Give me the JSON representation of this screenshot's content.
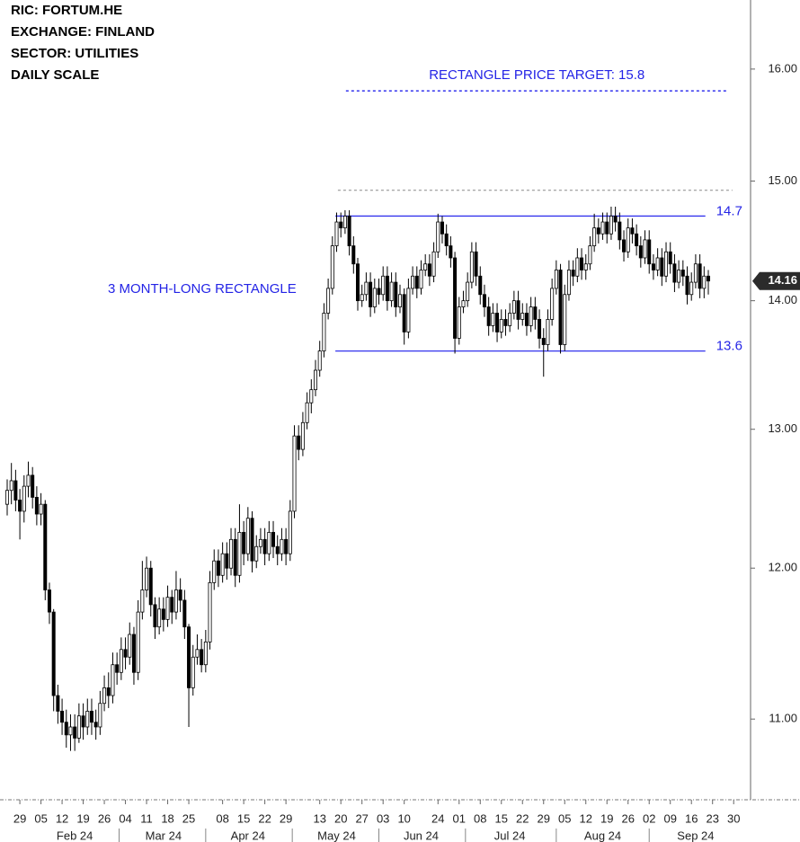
{
  "chart_data": {
    "type": "candlestick",
    "header": [
      "RIC:  FORTUM.HE",
      "EXCHANGE:  FINLAND",
      "SECTOR:  UTILITIES",
      "DAILY SCALE"
    ],
    "log_scale": true,
    "up_color": "#ffffff",
    "down_color": "#000000",
    "x": [
      0,
      1,
      2,
      3,
      4,
      5,
      6,
      7,
      8,
      9,
      10,
      11,
      12,
      13,
      14,
      15,
      16,
      17,
      18,
      19,
      20,
      21,
      22,
      23,
      24,
      25,
      26,
      27,
      28,
      29,
      30,
      31,
      32,
      33,
      34,
      35,
      36,
      37,
      38,
      39,
      40,
      41,
      42,
      43,
      44,
      45,
      46,
      47,
      48,
      49,
      50,
      51,
      52,
      53,
      54,
      55,
      56,
      57,
      58,
      59,
      60,
      61,
      62,
      63,
      64,
      65,
      66,
      67,
      68,
      69,
      70,
      71,
      72,
      73,
      74,
      75,
      76,
      77,
      78,
      79,
      80,
      81,
      82,
      83,
      84,
      85,
      86,
      87,
      88,
      89,
      90,
      91,
      92,
      93,
      94,
      95,
      96,
      97,
      98,
      99,
      100,
      101,
      102,
      103,
      104,
      105,
      106,
      107,
      108,
      109,
      110,
      111,
      112,
      113,
      114,
      115,
      116,
      117,
      118,
      119,
      120,
      121,
      122,
      123,
      124,
      125,
      126,
      127,
      128,
      129,
      130,
      131,
      132,
      133,
      134,
      135,
      136,
      137,
      138,
      139,
      140,
      141,
      142,
      143,
      144,
      145,
      146,
      147,
      148,
      149,
      150,
      151,
      152,
      153,
      154,
      155,
      156,
      157,
      158,
      159,
      160,
      161,
      162,
      163,
      164,
      165,
      166
    ],
    "open": [
      12.45,
      12.55,
      12.62,
      12.48,
      12.4,
      12.58,
      12.66,
      12.5,
      12.38,
      12.45,
      11.85,
      11.7,
      11.15,
      11.05,
      10.98,
      10.9,
      10.95,
      10.88,
      11.02,
      10.95,
      11.05,
      10.98,
      10.95,
      11.1,
      11.2,
      11.15,
      11.35,
      11.3,
      11.45,
      11.4,
      11.55,
      11.3,
      11.7,
      11.85,
      12.0,
      11.75,
      11.6,
      11.72,
      11.65,
      11.8,
      11.7,
      11.85,
      11.78,
      11.6,
      11.2,
      11.4,
      11.45,
      11.35,
      11.5,
      11.9,
      12.05,
      11.95,
      12.1,
      12.0,
      12.2,
      11.95,
      12.25,
      12.1,
      12.35,
      12.05,
      12.15,
      12.2,
      12.1,
      12.25,
      12.15,
      12.1,
      12.2,
      12.1,
      12.4,
      12.95,
      12.85,
      13.05,
      13.2,
      13.3,
      13.45,
      13.6,
      13.9,
      14.1,
      14.45,
      14.65,
      14.6,
      14.7,
      14.45,
      14.3,
      14.0,
      14.05,
      14.15,
      13.95,
      14.1,
      14.05,
      14.2,
      14.0,
      14.15,
      13.95,
      14.05,
      13.75,
      14.1,
      14.2,
      14.1,
      14.25,
      14.3,
      14.2,
      14.4,
      14.65,
      14.55,
      14.45,
      14.35,
      13.7,
      13.95,
      14.0,
      14.15,
      14.4,
      14.2,
      14.05,
      13.95,
      13.8,
      13.9,
      13.75,
      13.85,
      13.8,
      13.9,
      14.0,
      13.85,
      13.9,
      13.8,
      13.95,
      13.85,
      13.7,
      13.65,
      13.85,
      14.1,
      14.25,
      13.65,
      14.05,
      14.25,
      14.2,
      14.35,
      14.25,
      14.3,
      14.45,
      14.6,
      14.55,
      14.65,
      14.55,
      14.7,
      14.65,
      14.5,
      14.4,
      14.6,
      14.55,
      14.45,
      14.35,
      14.5,
      14.3,
      14.25,
      14.35,
      14.2,
      14.4,
      14.3,
      14.15,
      14.25,
      14.2,
      14.05,
      14.15,
      14.3,
      14.1,
      14.2
    ],
    "high": [
      12.63,
      12.75,
      12.7,
      12.56,
      12.66,
      12.76,
      12.72,
      12.58,
      12.53,
      12.48,
      11.9,
      11.72,
      11.22,
      11.13,
      11.06,
      11.03,
      11.03,
      11.1,
      11.1,
      11.13,
      11.13,
      11.06,
      11.18,
      11.28,
      11.3,
      11.43,
      11.43,
      11.53,
      11.53,
      11.63,
      11.6,
      11.78,
      12.05,
      12.08,
      12.05,
      11.8,
      11.8,
      11.8,
      11.88,
      11.85,
      11.98,
      11.93,
      11.85,
      11.62,
      11.48,
      11.55,
      11.52,
      11.58,
      11.98,
      12.13,
      12.13,
      12.18,
      12.18,
      12.28,
      12.28,
      12.45,
      12.33,
      12.43,
      12.4,
      12.23,
      12.28,
      12.28,
      12.33,
      12.33,
      12.23,
      12.28,
      12.28,
      12.48,
      13.03,
      13.03,
      13.13,
      13.28,
      13.38,
      13.53,
      13.68,
      13.98,
      14.18,
      14.53,
      14.73,
      14.73,
      14.75,
      14.75,
      14.53,
      14.35,
      14.13,
      14.23,
      14.23,
      14.18,
      14.18,
      14.28,
      14.28,
      14.23,
      14.23,
      14.13,
      14.1,
      14.18,
      14.28,
      14.28,
      14.33,
      14.38,
      14.38,
      14.48,
      14.72,
      14.7,
      14.63,
      14.53,
      14.4,
      14.03,
      14.08,
      14.23,
      14.48,
      14.48,
      14.28,
      14.13,
      14.03,
      13.98,
      13.98,
      13.93,
      13.93,
      13.98,
      14.08,
      14.08,
      13.98,
      13.98,
      14.03,
      14.03,
      13.93,
      13.78,
      13.93,
      14.18,
      14.33,
      14.3,
      14.13,
      14.33,
      14.33,
      14.43,
      14.43,
      14.38,
      14.53,
      14.72,
      14.68,
      14.73,
      14.73,
      14.78,
      14.78,
      14.73,
      14.58,
      14.68,
      14.68,
      14.63,
      14.53,
      14.58,
      14.58,
      14.38,
      14.43,
      14.43,
      14.48,
      14.48,
      14.38,
      14.33,
      14.33,
      14.28,
      14.23,
      14.38,
      14.38,
      14.28,
      14.25
    ],
    "low": [
      12.37,
      12.45,
      12.4,
      12.2,
      12.32,
      12.5,
      12.42,
      12.3,
      12.3,
      11.78,
      11.62,
      11.05,
      10.97,
      10.9,
      10.82,
      10.8,
      10.8,
      10.85,
      10.87,
      10.9,
      10.9,
      10.87,
      10.9,
      11.05,
      11.07,
      11.1,
      11.22,
      11.25,
      11.32,
      11.35,
      11.22,
      11.25,
      11.65,
      11.8,
      11.67,
      11.52,
      11.55,
      11.57,
      11.6,
      11.62,
      11.65,
      11.7,
      11.52,
      10.95,
      11.15,
      11.35,
      11.3,
      11.3,
      11.45,
      11.85,
      11.87,
      11.9,
      11.92,
      11.95,
      11.87,
      11.9,
      12.02,
      12.05,
      11.97,
      12.0,
      12.1,
      12.02,
      12.05,
      12.07,
      12.02,
      12.05,
      12.02,
      12.05,
      12.35,
      12.77,
      12.8,
      13.0,
      13.12,
      13.25,
      13.4,
      13.55,
      13.85,
      14.05,
      14.4,
      14.52,
      14.55,
      14.37,
      14.22,
      13.92,
      13.95,
      14.0,
      13.87,
      13.9,
      13.97,
      14.0,
      13.92,
      13.95,
      13.87,
      13.9,
      13.65,
      13.7,
      14.05,
      14.02,
      14.05,
      14.2,
      14.12,
      14.15,
      14.35,
      14.47,
      14.37,
      14.27,
      13.58,
      13.65,
      13.9,
      13.95,
      14.1,
      14.12,
      13.97,
      13.87,
      13.72,
      13.75,
      13.67,
      13.7,
      13.72,
      13.75,
      13.85,
      13.77,
      13.8,
      13.72,
      13.75,
      13.77,
      13.62,
      13.4,
      13.6,
      13.8,
      14.05,
      13.58,
      13.6,
      14.0,
      14.12,
      14.15,
      14.17,
      14.17,
      14.25,
      14.4,
      14.47,
      14.5,
      14.47,
      14.5,
      14.57,
      14.42,
      14.32,
      14.35,
      14.47,
      14.37,
      14.27,
      14.3,
      14.22,
      14.17,
      14.2,
      14.12,
      14.15,
      14.22,
      14.07,
      14.1,
      14.12,
      13.97,
      14.0,
      14.1,
      14.02,
      14.02,
      14.05
    ],
    "close": [
      12.55,
      12.62,
      12.48,
      12.4,
      12.58,
      12.66,
      12.5,
      12.38,
      12.45,
      11.85,
      11.7,
      11.15,
      11.05,
      10.98,
      10.9,
      10.95,
      10.88,
      11.02,
      10.95,
      11.05,
      10.98,
      10.95,
      11.1,
      11.2,
      11.15,
      11.35,
      11.3,
      11.45,
      11.4,
      11.55,
      11.3,
      11.7,
      11.85,
      12.0,
      11.75,
      11.6,
      11.72,
      11.65,
      11.8,
      11.7,
      11.85,
      11.78,
      11.6,
      11.2,
      11.4,
      11.45,
      11.35,
      11.5,
      11.9,
      12.05,
      11.95,
      12.1,
      12.0,
      12.2,
      11.95,
      12.25,
      12.1,
      12.35,
      12.05,
      12.15,
      12.2,
      12.1,
      12.25,
      12.15,
      12.1,
      12.2,
      12.1,
      12.4,
      12.95,
      12.85,
      13.05,
      13.2,
      13.3,
      13.45,
      13.6,
      13.9,
      14.1,
      14.45,
      14.65,
      14.6,
      14.7,
      14.45,
      14.3,
      14.0,
      14.05,
      14.15,
      13.95,
      14.1,
      14.05,
      14.2,
      14.0,
      14.15,
      13.95,
      14.05,
      13.75,
      14.1,
      14.2,
      14.1,
      14.25,
      14.3,
      14.2,
      14.4,
      14.65,
      14.55,
      14.45,
      14.35,
      13.7,
      13.95,
      14.0,
      14.15,
      14.4,
      14.2,
      14.05,
      13.95,
      13.8,
      13.9,
      13.75,
      13.85,
      13.8,
      13.9,
      14.0,
      13.85,
      13.9,
      13.8,
      13.95,
      13.85,
      13.7,
      13.65,
      13.85,
      14.1,
      14.25,
      13.65,
      14.05,
      14.25,
      14.2,
      14.35,
      14.25,
      14.3,
      14.45,
      14.6,
      14.55,
      14.65,
      14.55,
      14.7,
      14.65,
      14.5,
      14.4,
      14.6,
      14.55,
      14.45,
      14.35,
      14.5,
      14.3,
      14.25,
      14.35,
      14.2,
      14.4,
      14.3,
      14.15,
      14.25,
      14.2,
      14.05,
      14.15,
      14.3,
      14.1,
      14.2,
      14.16
    ],
    "xlim": [
      -1.7,
      176
    ],
    "ylim": [
      10.5,
      16.65
    ],
    "yticks": [
      {
        "value": 11,
        "label": "11.00"
      },
      {
        "value": 12,
        "label": "12.00"
      },
      {
        "value": 13,
        "label": "13.00"
      },
      {
        "value": 14,
        "label": "14.00"
      },
      {
        "value": 15,
        "label": "15.00"
      },
      {
        "value": 16,
        "label": "16.00"
      }
    ],
    "xticks": [
      {
        "value": 3,
        "label": "29"
      },
      {
        "value": 8,
        "label": "05"
      },
      {
        "value": 13,
        "label": "12"
      },
      {
        "value": 18,
        "label": "19"
      },
      {
        "value": 23,
        "label": "26"
      },
      {
        "value": 28,
        "label": "04"
      },
      {
        "value": 33,
        "label": "11"
      },
      {
        "value": 38,
        "label": "18"
      },
      {
        "value": 43,
        "label": "25"
      },
      {
        "value": 51,
        "label": "08"
      },
      {
        "value": 56,
        "label": "15"
      },
      {
        "value": 61,
        "label": "22"
      },
      {
        "value": 66,
        "label": "29"
      },
      {
        "value": 74,
        "label": "13"
      },
      {
        "value": 79,
        "label": "20"
      },
      {
        "value": 84,
        "label": "27"
      },
      {
        "value": 89,
        "label": "03"
      },
      {
        "value": 94,
        "label": "10"
      },
      {
        "value": 102,
        "label": "24"
      },
      {
        "value": 107,
        "label": "01"
      },
      {
        "value": 112,
        "label": "08"
      },
      {
        "value": 117,
        "label": "15"
      },
      {
        "value": 122,
        "label": "22"
      },
      {
        "value": 127,
        "label": "29"
      },
      {
        "value": 132,
        "label": "05"
      },
      {
        "value": 137,
        "label": "12"
      },
      {
        "value": 142,
        "label": "19"
      },
      {
        "value": 147,
        "label": "26"
      },
      {
        "value": 152,
        "label": "02"
      },
      {
        "value": 157,
        "label": "09"
      },
      {
        "value": 162,
        "label": "16"
      },
      {
        "value": 167,
        "label": "23"
      },
      {
        "value": 172,
        "label": "30"
      }
    ],
    "months": [
      {
        "value": 16,
        "label": "Feb 24"
      },
      {
        "value": 37,
        "label": "Mar 24"
      },
      {
        "value": 57,
        "label": "Apr 24"
      },
      {
        "value": 78,
        "label": "May 24"
      },
      {
        "value": 98,
        "label": "Jun 24"
      },
      {
        "value": 119,
        "label": "Jul 24"
      },
      {
        "value": 141,
        "label": "Aug 24"
      },
      {
        "value": 163,
        "label": "Sep 24"
      }
    ],
    "levels": [
      {
        "value": 14.7,
        "from": 77.7,
        "to": 165.3
      },
      {
        "value": 13.6,
        "from": 77.7,
        "to": 165.3
      }
    ],
    "target": {
      "label": "RECTANGLE PRICE TARGET: 15.8",
      "value": 15.8,
      "from": 80.2,
      "to": 170.6
    },
    "upper_dashed": {
      "value": 14.92,
      "from": 78.3,
      "to": 171.7
    },
    "pattern_label": "3 MONTH-LONG RECTANGLE"
  }
}
